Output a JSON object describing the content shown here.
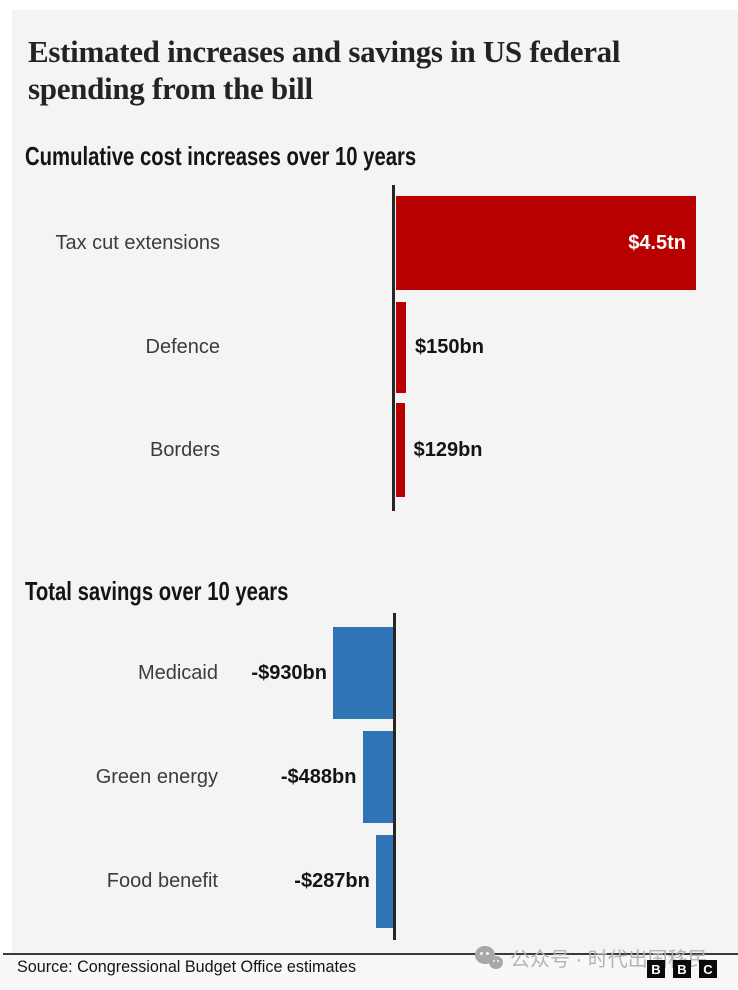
{
  "title": "Estimated increases and savings in US federal spending from the bill",
  "chart_data": [
    {
      "type": "bar",
      "orientation": "horizontal",
      "title": "Cumulative cost increases over 10 years",
      "categories": [
        "Tax cut extensions",
        "Defence",
        "Borders"
      ],
      "values_bn": [
        4500,
        150,
        129
      ],
      "value_labels": [
        "$4.5tn",
        "$150bn",
        "$129bn"
      ],
      "bar_color": "#b80000",
      "baseline": "left",
      "axis_range_bn": [
        0,
        4500
      ],
      "grid": false,
      "legend": "none"
    },
    {
      "type": "bar",
      "orientation": "horizontal",
      "title": "Total savings over 10 years",
      "categories": [
        "Medicaid",
        "Green energy",
        "Food benefit"
      ],
      "values_bn": [
        -930,
        -488,
        -287
      ],
      "value_labels": [
        "-$930bn",
        "-$488bn",
        "-$287bn"
      ],
      "bar_color": "#2f75b5",
      "baseline": "right",
      "axis_range_bn": [
        -930,
        0
      ],
      "grid": false,
      "legend": "none"
    }
  ],
  "footer": {
    "source": "Source: Congressional Budget Office estimates",
    "logo_letters": [
      "B",
      "B",
      "C"
    ]
  },
  "watermark": {
    "icon": "wechat-icon",
    "text": "公众号 · 时代出国移民"
  },
  "colors": {
    "increase_bar": "#b80000",
    "savings_bar": "#2f75b5",
    "background": "#f4f4f4",
    "axis": "#262626"
  }
}
